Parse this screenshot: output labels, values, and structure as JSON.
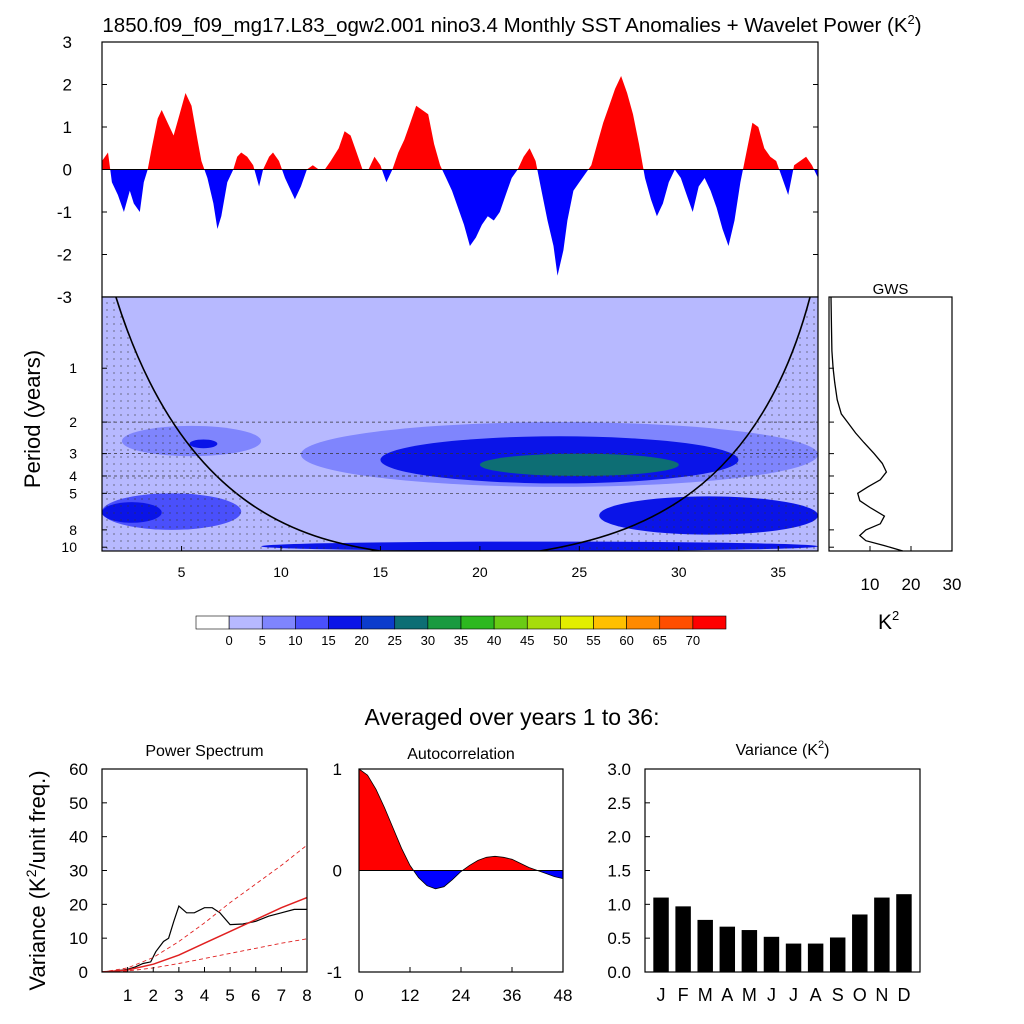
{
  "title_main": "1850.f09_f09_mg17.L83_ogw2.001 nino3.4 Monthly SST Anomalies + Wavelet Power (K",
  "title_sup": "2",
  "title_close": ")",
  "colors": {
    "positive": "#ff0000",
    "negative": "#0000ff",
    "axis": "#000000",
    "text": "#000000",
    "bars": "#000000",
    "mean_red": "#e02020"
  },
  "chart_data": [
    {
      "id": "timeseries",
      "type": "area",
      "title": "Nino3.4 monthly SST anomalies",
      "xlim": [
        1,
        37
      ],
      "ylim": [
        -3,
        3
      ],
      "yticks": [
        -3,
        -2,
        -1,
        0,
        1,
        2,
        3
      ],
      "ytick_labels": [
        "-3",
        "-2",
        "-1",
        "0",
        "1",
        "2",
        "3"
      ],
      "fill_positive": "red",
      "fill_negative": "blue",
      "x": [
        1.0,
        1.3,
        1.5,
        1.8,
        2.1,
        2.4,
        2.6,
        2.9,
        3.1,
        3.3,
        3.5,
        3.8,
        4.0,
        4.3,
        4.6,
        4.9,
        5.2,
        5.5,
        5.8,
        6.0,
        6.3,
        6.6,
        6.8,
        7.0,
        7.3,
        7.6,
        7.8,
        8.0,
        8.3,
        8.6,
        8.9,
        9.1,
        9.4,
        9.6,
        9.9,
        10.2,
        10.5,
        10.7,
        11.0,
        11.3,
        11.6,
        11.9,
        12.2,
        12.5,
        12.9,
        13.2,
        13.5,
        13.8,
        14.1,
        14.4,
        14.7,
        15.0,
        15.3,
        15.6,
        15.9,
        16.2,
        16.5,
        16.8,
        17.1,
        17.4,
        17.7,
        18.0,
        18.3,
        18.6,
        18.9,
        19.2,
        19.5,
        19.8,
        20.1,
        20.4,
        20.7,
        21.0,
        21.3,
        21.6,
        21.9,
        22.2,
        22.5,
        22.8,
        23.1,
        23.4,
        23.7,
        23.9,
        24.2,
        24.4,
        24.7,
        25.0,
        25.3,
        25.6,
        25.9,
        26.2,
        26.5,
        26.8,
        27.1,
        27.4,
        27.7,
        28.0,
        28.3,
        28.6,
        28.9,
        29.2,
        29.5,
        29.8,
        30.1,
        30.4,
        30.7,
        31.0,
        31.3,
        31.6,
        31.9,
        32.2,
        32.5,
        32.8,
        33.1,
        33.4,
        33.7,
        34.0,
        34.3,
        34.6,
        34.9,
        35.2,
        35.5,
        35.8,
        36.1,
        36.4,
        36.7,
        37.0
      ],
      "y": [
        0.2,
        0.4,
        -0.3,
        -0.6,
        -1.0,
        -0.5,
        -0.8,
        -1.0,
        -0.3,
        0.0,
        0.5,
        1.2,
        1.4,
        1.1,
        0.8,
        1.3,
        1.8,
        1.5,
        0.7,
        0.2,
        -0.2,
        -0.8,
        -1.4,
        -1.1,
        -0.3,
        0.0,
        0.3,
        0.4,
        0.3,
        0.1,
        -0.4,
        0.0,
        0.3,
        0.4,
        0.2,
        -0.2,
        -0.5,
        -0.7,
        -0.4,
        0.0,
        0.1,
        0.0,
        0.0,
        0.2,
        0.5,
        0.9,
        0.8,
        0.4,
        0.0,
        0.0,
        0.3,
        0.1,
        -0.3,
        0.0,
        0.4,
        0.7,
        1.1,
        1.5,
        1.4,
        1.3,
        0.6,
        0.1,
        -0.2,
        -0.5,
        -0.9,
        -1.3,
        -1.8,
        -1.6,
        -1.3,
        -1.1,
        -1.2,
        -1.0,
        -0.6,
        -0.2,
        0.0,
        0.3,
        0.5,
        0.2,
        -0.5,
        -1.2,
        -1.8,
        -2.5,
        -1.9,
        -1.2,
        -0.5,
        -0.3,
        -0.1,
        0.1,
        0.6,
        1.1,
        1.5,
        1.9,
        2.2,
        1.8,
        1.3,
        0.6,
        -0.2,
        -0.7,
        -1.1,
        -0.8,
        -0.3,
        0.0,
        -0.2,
        -0.6,
        -1.0,
        -0.4,
        -0.2,
        -0.5,
        -0.9,
        -1.4,
        -1.8,
        -1.2,
        -0.3,
        0.4,
        1.1,
        1.0,
        0.5,
        0.3,
        0.2,
        -0.2,
        -0.6,
        0.1,
        0.2,
        0.3,
        0.1,
        -0.2
      ]
    },
    {
      "id": "wavelet",
      "type": "heatmap",
      "title": "Wavelet Power",
      "xlabel": "",
      "ylabel": "Period (years)",
      "xlim": [
        1,
        37
      ],
      "xticks": [
        5,
        10,
        15,
        20,
        25,
        30,
        35
      ],
      "xtick_labels": [
        "5",
        "10",
        "15",
        "20",
        "25",
        "30",
        "35"
      ],
      "ylim": [
        0.4,
        10.5
      ],
      "yscale": "log",
      "yticks": [
        1,
        2,
        3,
        4,
        5,
        8,
        10
      ],
      "ytick_labels": [
        "1",
        "2",
        "3",
        "4",
        "5",
        "8",
        "10"
      ],
      "contour_levels": [
        0,
        5,
        10,
        15,
        20,
        25,
        30,
        35,
        40,
        45,
        50,
        55,
        60,
        65,
        70
      ],
      "colorbar_labels": [
        "0",
        "5",
        "10",
        "15",
        "20",
        "25",
        "30",
        "35",
        "40",
        "45",
        "50",
        "55",
        "60",
        "65",
        "70"
      ],
      "colorbar_colors": [
        "#ffffff",
        "#b7b9ff",
        "#7f85fd",
        "#4a50fb",
        "#0a14e8",
        "#0c3ccc",
        "#0d6e74",
        "#1a9a40",
        "#2db81f",
        "#6acc14",
        "#a6dc0c",
        "#e3ee00",
        "#ffc000",
        "#ff8a00",
        "#ff4e00",
        "#ff0000"
      ],
      "regions": [
        {
          "label": "background",
          "level": 1
        },
        {
          "label": "period ~2.5 (years 2-9)",
          "level": 2,
          "x": [
            2,
            9
          ],
          "period": [
            2.1,
            3.1
          ]
        },
        {
          "label": "period ~2.7 core (year 6)",
          "level": 4,
          "x": [
            5.4,
            6.8
          ],
          "period": [
            2.5,
            2.8
          ]
        },
        {
          "label": "period 5-8 band (years 1-8)",
          "level": 3,
          "x": [
            1,
            8
          ],
          "period": [
            5.0,
            8.0
          ]
        },
        {
          "label": "period 5-8 core (years 1-4)",
          "level": 4,
          "x": [
            1,
            4
          ],
          "period": [
            5.6,
            7.3
          ]
        },
        {
          "label": "period 2-4 band (years 11-37)",
          "level": 2,
          "x": [
            11,
            37
          ],
          "period": [
            2.0,
            4.6
          ]
        },
        {
          "label": "period 3-4 band (years 15-33)",
          "level": 4,
          "x": [
            15,
            33
          ],
          "period": [
            2.4,
            4.4
          ]
        },
        {
          "label": "period ~3.5 core (years 20-30)",
          "level": 6,
          "x": [
            20,
            30
          ],
          "period": [
            3.0,
            4.0
          ]
        },
        {
          "label": "period 5-9 band (years 26-37)",
          "level": 4,
          "x": [
            26,
            37
          ],
          "period": [
            5.2,
            8.5
          ]
        },
        {
          "label": "period ~10 band",
          "level": 4,
          "x": [
            9,
            37
          ],
          "period": [
            9.3,
            10.5
          ]
        }
      ],
      "coi_note": "cone of influence (stippled outside)"
    },
    {
      "id": "gws",
      "type": "line",
      "title": "GWS",
      "xlabel": "K",
      "xlabel_sup": "2",
      "xlim": [
        0,
        30
      ],
      "xticks": [
        10,
        20,
        30
      ],
      "xtick_labels": [
        "10",
        "20",
        "30"
      ],
      "period": [
        0.4,
        0.6,
        0.8,
        1.0,
        1.2,
        1.5,
        1.8,
        2.0,
        2.3,
        2.6,
        3.0,
        3.4,
        3.8,
        4.2,
        4.6,
        5.0,
        5.5,
        6.0,
        6.7,
        7.4,
        8.0,
        8.6,
        9.2,
        9.8,
        10.5
      ],
      "power": [
        0.5,
        0.6,
        0.7,
        1.0,
        1.4,
        2.0,
        3.0,
        4.5,
        6.5,
        8.5,
        11.0,
        13.0,
        14.0,
        12.5,
        9.5,
        7.0,
        7.5,
        10.0,
        13.5,
        12.5,
        9.0,
        7.5,
        9.0,
        13.5,
        18.0
      ]
    },
    {
      "id": "power_spectrum",
      "type": "line",
      "title": "Power Spectrum",
      "ylabel": "Variance (K",
      "ylabel_sup": "2",
      "ylabel_end": "/unit freq.)",
      "xlim": [
        0,
        8
      ],
      "ylim": [
        0,
        60
      ],
      "xticks": [
        1,
        2,
        3,
        4,
        5,
        6,
        7,
        8
      ],
      "xtick_labels": [
        "1",
        "2",
        "3",
        "4",
        "5",
        "6",
        "7",
        "8"
      ],
      "yticks": [
        0,
        10,
        20,
        30,
        40,
        50,
        60
      ],
      "ytick_labels": [
        "0",
        "10",
        "20",
        "30",
        "40",
        "50",
        "60"
      ],
      "series": [
        {
          "name": "spectrum",
          "color": "black",
          "x": [
            0,
            0.5,
            1.0,
            1.3,
            1.6,
            1.9,
            2.1,
            2.4,
            2.6,
            2.8,
            3.0,
            3.3,
            3.6,
            4.0,
            4.3,
            4.6,
            5.0,
            5.5,
            6.0,
            6.5,
            7.0,
            7.5,
            8.0
          ],
          "y": [
            0,
            0.3,
            0.8,
            1.5,
            2.5,
            3.0,
            6.0,
            9.0,
            10.0,
            15.0,
            19.5,
            17.5,
            17.5,
            19.0,
            19.0,
            17.5,
            14.0,
            14.2,
            15.0,
            16.5,
            17.5,
            18.5,
            18.5
          ]
        },
        {
          "name": "red-noise",
          "color": "red",
          "x": [
            0,
            1,
            2,
            3,
            4,
            5,
            6,
            7,
            8
          ],
          "y": [
            0,
            0.6,
            2.3,
            5.0,
            8.5,
            12.0,
            15.5,
            19.0,
            22.0
          ]
        },
        {
          "name": "upper 95%",
          "color": "red-dashed",
          "x": [
            0,
            1,
            2,
            3,
            4,
            5,
            6,
            7,
            8
          ],
          "y": [
            0,
            1.2,
            4.3,
            9.0,
            14.5,
            20.5,
            26.0,
            31.5,
            37.5
          ]
        },
        {
          "name": "lower 5%",
          "color": "red-dashed",
          "x": [
            0,
            1,
            2,
            3,
            4,
            5,
            6,
            7,
            8
          ],
          "y": [
            0,
            0.3,
            1.2,
            2.5,
            4.0,
            5.5,
            7.0,
            8.5,
            9.8
          ]
        }
      ]
    },
    {
      "id": "autocorrelation",
      "type": "area",
      "title": "Autocorrelation",
      "xlim": [
        0,
        48
      ],
      "ylim": [
        -1,
        1
      ],
      "xticks": [
        0,
        12,
        24,
        36,
        48
      ],
      "xtick_labels": [
        "0",
        "12",
        "24",
        "36",
        "48"
      ],
      "yticks": [
        -1,
        0,
        1
      ],
      "ytick_labels": [
        "-1",
        "0",
        "1"
      ],
      "x": [
        0,
        2,
        4,
        6,
        8,
        10,
        12,
        14,
        16,
        18,
        20,
        22,
        24,
        26,
        28,
        30,
        32,
        34,
        36,
        38,
        40,
        42,
        44,
        46,
        48
      ],
      "y": [
        1.0,
        0.94,
        0.8,
        0.62,
        0.42,
        0.22,
        0.05,
        -0.07,
        -0.15,
        -0.18,
        -0.16,
        -0.09,
        -0.01,
        0.05,
        0.1,
        0.13,
        0.14,
        0.13,
        0.11,
        0.07,
        0.03,
        0.0,
        -0.03,
        -0.06,
        -0.08
      ]
    },
    {
      "id": "variance",
      "type": "bar",
      "title": "Variance (K",
      "title_sup": "2",
      "title_end": ")",
      "categories": [
        "J",
        "F",
        "M",
        "A",
        "M",
        "J",
        "J",
        "A",
        "S",
        "O",
        "N",
        "D"
      ],
      "values": [
        1.1,
        0.97,
        0.77,
        0.67,
        0.62,
        0.52,
        0.42,
        0.42,
        0.51,
        0.85,
        1.1,
        1.15
      ],
      "ylim": [
        0,
        3.0
      ],
      "yticks": [
        0,
        0.5,
        1.0,
        1.5,
        2.0,
        2.5,
        3.0
      ],
      "ytick_labels": [
        "0.0",
        "0.5",
        "1.0",
        "1.5",
        "2.0",
        "2.5",
        "3.0"
      ]
    }
  ],
  "subtitle": "Averaged over years 1 to 36:"
}
